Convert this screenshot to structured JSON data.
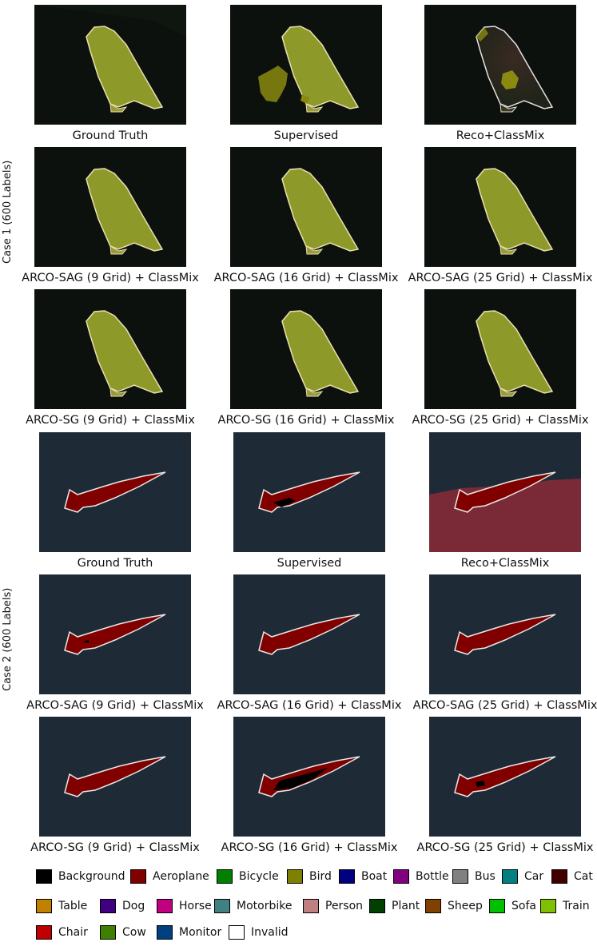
{
  "case1": {
    "label": "Case 1 (600 Labels)",
    "captions": [
      "Ground Truth",
      "Supervised",
      "Reco+ClassMix",
      "ARCO-SAG (9 Grid) + ClassMix",
      "ARCO-SAG (16 Grid) + ClassMix",
      "ARCO-SAG (25 Grid) + ClassMix",
      "ARCO-SG (9 Grid) + ClassMix",
      "ARCO-SG (16 Grid) + ClassMix",
      "ARCO-SG (25 Grid) + ClassMix"
    ]
  },
  "case2": {
    "label": "Case 2 (600 Labels)",
    "captions": [
      "Ground Truth",
      "Supervised",
      "Reco+ClassMix",
      "ARCO-SAG (9 Grid) + ClassMix",
      "ARCO-SAG (16 Grid) + ClassMix",
      "ARCO-SAG (25 Grid) + ClassMix",
      "ARCO-SG (9 Grid) + ClassMix",
      "ARCO-SG (16 Grid) + ClassMix",
      "ARCO-SG (25 Grid) + ClassMix"
    ]
  },
  "legend": [
    {
      "label": "Background",
      "color": "#000000"
    },
    {
      "label": "Aeroplane",
      "color": "#800000"
    },
    {
      "label": "Bicycle",
      "color": "#008000"
    },
    {
      "label": "Bird",
      "color": "#808000"
    },
    {
      "label": "Boat",
      "color": "#000080"
    },
    {
      "label": "Bottle",
      "color": "#800080"
    },
    {
      "label": "Bus",
      "color": "#808080"
    },
    {
      "label": "Car",
      "color": "#008080"
    },
    {
      "label": "Cat",
      "color": "#400000"
    },
    {
      "label": "Table",
      "color": "#c08000"
    },
    {
      "label": "Dog",
      "color": "#400080"
    },
    {
      "label": "Horse",
      "color": "#c00080"
    },
    {
      "label": "Motorbike",
      "color": "#408080"
    },
    {
      "label": "Person",
      "color": "#c08080"
    },
    {
      "label": "Plant",
      "color": "#004000"
    },
    {
      "label": "Sheep",
      "color": "#804000"
    },
    {
      "label": "Sofa",
      "color": "#00c000"
    },
    {
      "label": "Train",
      "color": "#80c000"
    },
    {
      "label": "Chair",
      "color": "#c00000"
    },
    {
      "label": "Cow",
      "color": "#408000"
    },
    {
      "label": "Monitor",
      "color": "#004080"
    },
    {
      "label": "Invalid",
      "color": "#ffffff"
    }
  ]
}
